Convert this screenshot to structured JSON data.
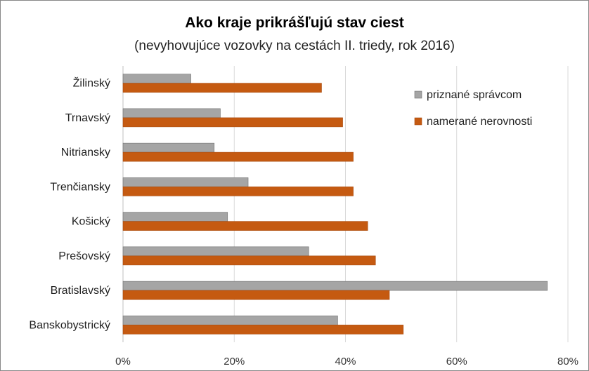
{
  "chart_data": {
    "type": "bar",
    "orientation": "horizontal",
    "title": "Ako kraje prikrášľujú stav ciest",
    "subtitle": "(nevyhovujúce  vozovky na cestách II. triedy, rok 2016)",
    "categories": [
      "Žilinský",
      "Trnavský",
      "Nitriansky",
      "Trenčiansky",
      "Košický",
      "Prešovský",
      "Bratislavský",
      "Banskobystrický"
    ],
    "series": [
      {
        "name": "priznané správcom",
        "color": "#a5a5a5",
        "values": [
          12.2,
          17.5,
          16.4,
          22.5,
          18.8,
          33.4,
          76.3,
          38.6
        ]
      },
      {
        "name": "namerané nerovnosti",
        "color": "#c55a11",
        "values": [
          35.7,
          39.5,
          41.4,
          41.4,
          44.0,
          45.4,
          47.9,
          50.4
        ]
      }
    ],
    "xlim": [
      0,
      80
    ],
    "xticks": [
      "0%",
      "20%",
      "40%",
      "60%",
      "80%"
    ],
    "xtick_values": [
      0,
      20,
      40,
      60,
      80
    ],
    "grid": true,
    "legend_position": "top-right"
  }
}
